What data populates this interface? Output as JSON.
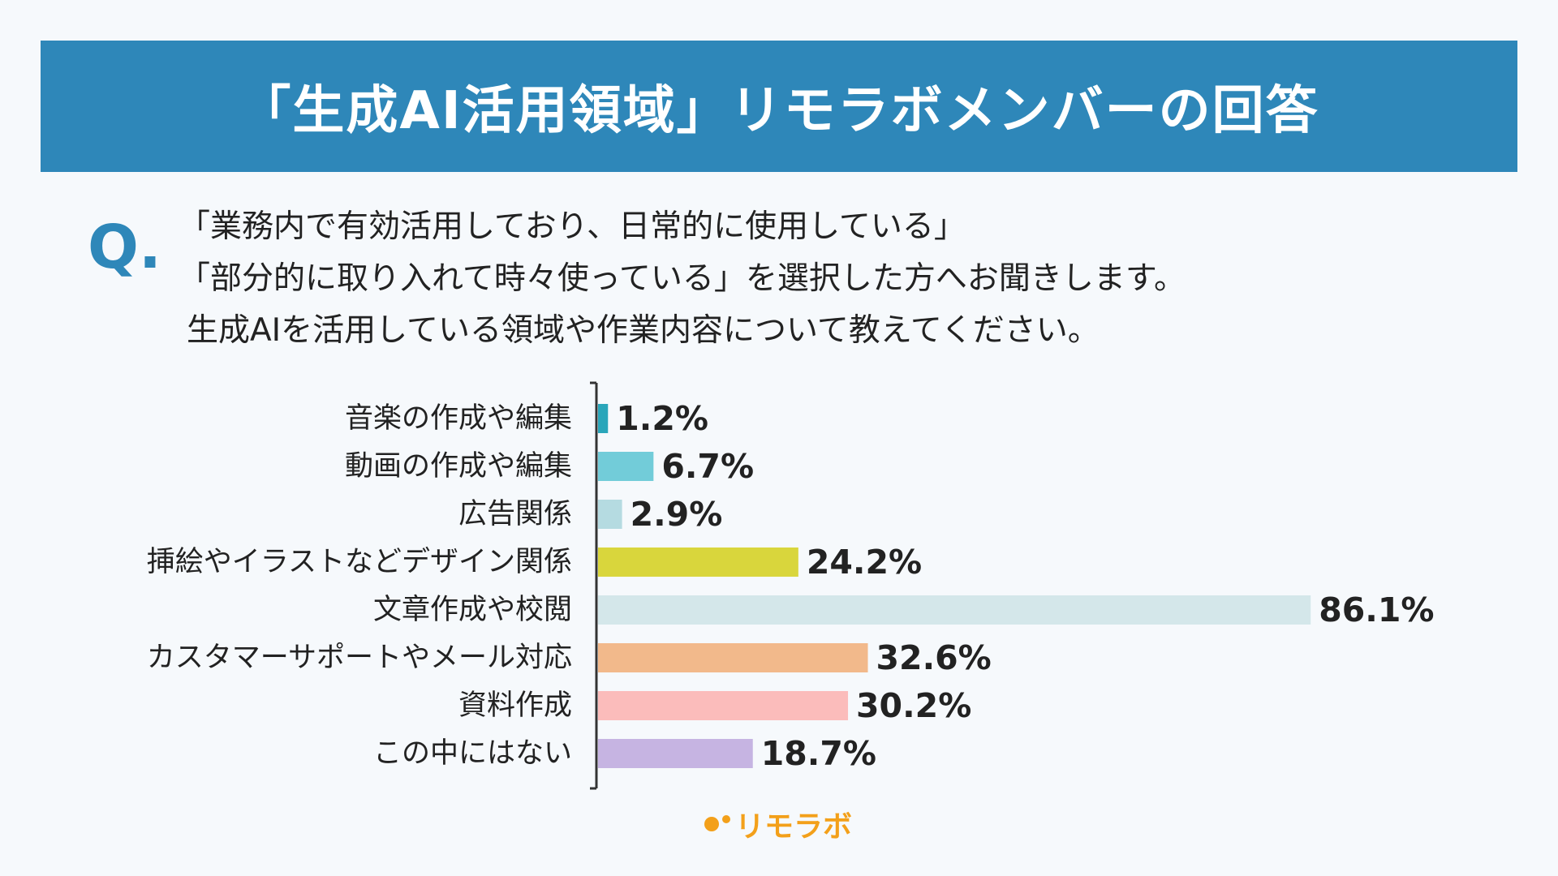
{
  "header": {
    "title": "「生成AI活用領域」リモラボメンバーの回答"
  },
  "question": {
    "mark": "Q.",
    "lines": [
      "「業務内で有効活用しており、日常的に使用している」",
      "「部分的に取り入れて時々使っている」を選択した方へお聞きします。",
      "生成AIを活用している領域や作業内容について教えてください。"
    ]
  },
  "chart_data": {
    "type": "bar",
    "orientation": "horizontal",
    "categories": [
      "音楽の作成や編集",
      "動画の作成や編集",
      "広告関係",
      "挿絵やイラストなどデザイン関係",
      "文章作成や校閲",
      "カスタマーサポートやメール対応",
      "資料作成",
      "この中にはない"
    ],
    "values": [
      1.2,
      6.7,
      2.9,
      24.2,
      86.1,
      32.6,
      30.2,
      18.7
    ],
    "value_labels": [
      "1.2%",
      "6.7%",
      "2.9%",
      "24.2%",
      "86.1%",
      "32.6%",
      "30.2%",
      "18.7%"
    ],
    "unit": "%",
    "xlim": [
      0,
      100
    ],
    "colors": [
      "#2aa6ba",
      "#72ccd9",
      "#b5dbe1",
      "#d9d63c",
      "#d4e7ea",
      "#f2b98b",
      "#fbbcbb",
      "#c6b4e2"
    ],
    "grid": false,
    "legend": "none"
  },
  "logo": {
    "text": "リモラボ",
    "color": "#f3a01a"
  }
}
